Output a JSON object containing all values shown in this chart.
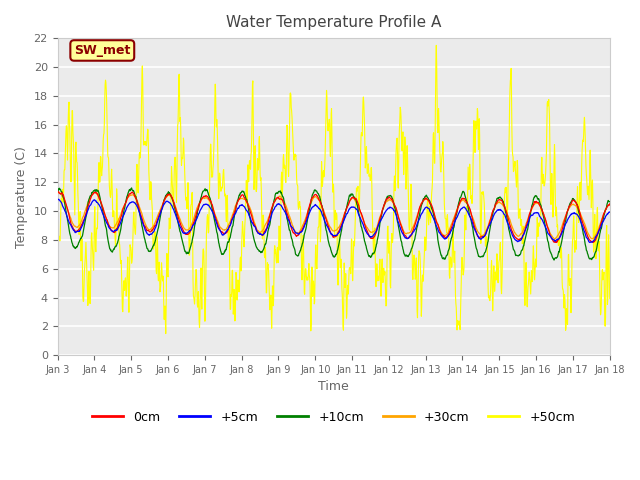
{
  "title": "Water Temperature Profile A",
  "xlabel": "Time",
  "ylabel": "Temperature (C)",
  "ylim": [
    0,
    22
  ],
  "yticks": [
    0,
    2,
    4,
    6,
    8,
    10,
    12,
    14,
    16,
    18,
    20,
    22
  ],
  "xtick_labels": [
    "Jan 3",
    "Jan 4",
    "Jan 5",
    "Jan 6",
    "Jan 7",
    "Jan 8",
    "Jan 9",
    "Jan 10",
    "Jan 11",
    "Jan 12",
    "Jan 13",
    "Jan 14",
    "Jan 15",
    "Jan 16",
    "Jan 17",
    "Jan 18"
  ],
  "legend_labels": [
    "0cm",
    "+5cm",
    "+10cm",
    "+30cm",
    "+50cm"
  ],
  "legend_colors": [
    "red",
    "blue",
    "green",
    "orange",
    "yellow"
  ],
  "annotation_text": "SW_met",
  "annotation_bg": "#ffff99",
  "annotation_border": "#8b0000",
  "annotation_text_color": "#8b0000",
  "plot_bg": "#ebebeb",
  "grid_color": "white",
  "title_color": "#444444",
  "axis_label_color": "#666666",
  "tick_color": "#666666"
}
